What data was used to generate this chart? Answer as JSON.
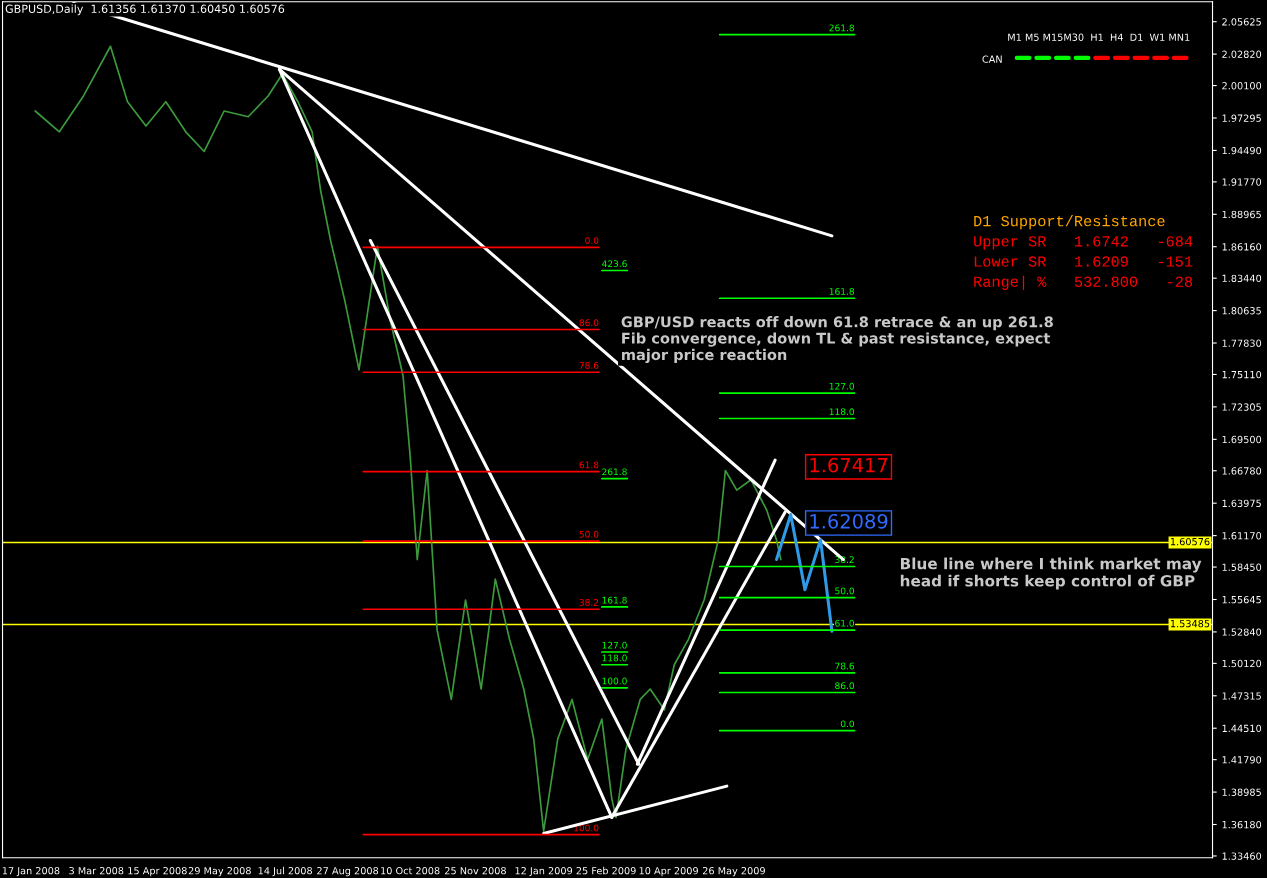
{
  "chart_data": {
    "type": "line",
    "title": "GBPUSD,Daily  1.61356 1.61370 1.60450 1.60576",
    "xlim": [
      "2007-12-28",
      "2010-04-28"
    ],
    "xticks": [
      {
        "value": "2008-01-17",
        "label": "17 Jan 2008"
      },
      {
        "value": "2008-03-03",
        "label": "3 Mar 2008"
      },
      {
        "value": "2008-04-15",
        "label": "15 Apr 2008"
      },
      {
        "value": "2008-05-29",
        "label": "29 May 2008"
      },
      {
        "value": "2008-07-14",
        "label": "14 Jul 2008"
      },
      {
        "value": "2008-08-27",
        "label": "27 Aug 2008"
      },
      {
        "value": "2008-10-10",
        "label": "10 Oct 2008"
      },
      {
        "value": "2008-11-25",
        "label": "25 Nov 2008"
      },
      {
        "value": "2009-01-12",
        "label": "12 Jan 2009"
      },
      {
        "value": "2009-02-25",
        "label": "25 Feb 2009"
      },
      {
        "value": "2009-04-10",
        "label": "10 Apr 2009"
      },
      {
        "value": "2009-05-26",
        "label": "26 May 2009"
      }
    ],
    "ylim": [
      1.333,
      2.0735
    ],
    "yticks": [
      {
        "value": 2.05625,
        "label": "2.05625"
      },
      {
        "value": 2.0282,
        "label": "2.02820"
      },
      {
        "value": 2.001,
        "label": "2.00100"
      },
      {
        "value": 1.97295,
        "label": "1.97295"
      },
      {
        "value": 1.9449,
        "label": "1.94490"
      },
      {
        "value": 1.9177,
        "label": "1.91770"
      },
      {
        "value": 1.88965,
        "label": "1.88965"
      },
      {
        "value": 1.8616,
        "label": "1.86160"
      },
      {
        "value": 1.8344,
        "label": "1.83440"
      },
      {
        "value": 1.80635,
        "label": "1.80635"
      },
      {
        "value": 1.7783,
        "label": "1.77830"
      },
      {
        "value": 1.7511,
        "label": "1.75110"
      },
      {
        "value": 1.72305,
        "label": "1.72305"
      },
      {
        "value": 1.695,
        "label": "1.69500"
      },
      {
        "value": 1.6678,
        "label": "1.66780"
      },
      {
        "value": 1.63975,
        "label": "1.63975"
      },
      {
        "value": 1.6117,
        "label": "1.61170"
      },
      {
        "value": 1.5845,
        "label": "1.58450"
      },
      {
        "value": 1.55645,
        "label": "1.55645"
      },
      {
        "value": 1.5284,
        "label": "1.52840"
      },
      {
        "value": 1.5012,
        "label": "1.50120"
      },
      {
        "value": 1.47315,
        "label": "1.47315"
      },
      {
        "value": 1.4451,
        "label": "1.44510"
      },
      {
        "value": 1.4179,
        "label": "1.41790"
      },
      {
        "value": 1.38985,
        "label": "1.38985"
      },
      {
        "value": 1.3618,
        "label": "1.36180"
      },
      {
        "value": 1.3346,
        "label": "1.33460"
      }
    ],
    "grid": false,
    "legend": false,
    "series": [
      {
        "color": "#3c9a3c",
        "x": [
          "2008-01-20",
          "2008-02-06",
          "2008-02-23",
          "2008-03-13",
          "2008-03-25",
          "2008-04-07",
          "2008-04-21",
          "2008-05-05",
          "2008-05-18",
          "2008-06-01",
          "2008-06-18",
          "2008-07-02",
          "2008-07-12",
          "2008-07-23",
          "2008-08-02",
          "2008-08-08",
          "2008-08-15",
          "2008-08-25",
          "2008-09-04",
          "2008-09-17",
          "2008-09-26",
          "2008-10-05",
          "2008-10-10",
          "2008-10-15",
          "2008-10-22",
          "2008-10-29",
          "2008-11-08",
          "2008-11-18",
          "2008-11-29",
          "2008-12-09",
          "2008-12-19",
          "2008-12-29",
          "2009-01-05",
          "2009-01-12",
          "2009-01-22",
          "2009-02-01",
          "2009-02-12",
          "2009-02-22",
          "2009-03-01",
          "2009-03-04",
          "2009-03-11",
          "2009-03-21",
          "2009-03-28",
          "2009-04-07",
          "2009-04-14",
          "2009-04-24",
          "2009-05-05",
          "2009-05-15",
          "2009-05-20",
          "2009-05-28",
          "2009-06-07",
          "2009-06-18",
          "2009-06-25",
          "2009-06-28"
        ],
        "values": [
          1.979,
          1.961,
          1.992,
          2.035,
          1.987,
          1.966,
          1.987,
          1.961,
          1.944,
          1.979,
          1.974,
          1.992,
          2.011,
          1.987,
          1.961,
          1.91,
          1.867,
          1.815,
          1.755,
          1.862,
          1.798,
          1.75,
          1.681,
          1.591,
          1.668,
          1.53,
          1.47,
          1.556,
          1.479,
          1.574,
          1.522,
          1.479,
          1.436,
          1.356,
          1.436,
          1.47,
          1.418,
          1.453,
          1.384,
          1.368,
          1.427,
          1.47,
          1.479,
          1.461,
          1.5,
          1.522,
          1.556,
          1.608,
          1.668,
          1.651,
          1.66,
          1.634,
          1.608,
          1.591
        ]
      },
      {
        "color": "#ffffff",
        "x": [
          "2008-02-16",
          "2009-08-03"
        ],
        "values": [
          2.072,
          1.871
        ]
      },
      {
        "color": "#ffffff",
        "x": [
          "2008-07-10",
          "2009-08-11"
        ],
        "values": [
          2.015,
          1.591
        ]
      },
      {
        "color": "#ffffff",
        "x": [
          "2008-07-10",
          "2009-03-01"
        ],
        "values": [
          2.015,
          1.368
        ]
      },
      {
        "color": "#ffffff",
        "x": [
          "2008-09-12",
          "2009-03-20"
        ],
        "values": [
          1.867,
          1.414
        ]
      },
      {
        "color": "#ffffff",
        "x": [
          "2009-01-12",
          "2009-05-21"
        ],
        "values": [
          1.354,
          1.395
        ]
      },
      {
        "color": "#ffffff",
        "x": [
          "2009-03-01",
          "2009-07-01"
        ],
        "values": [
          1.368,
          1.632
        ]
      },
      {
        "color": "#ffffff",
        "x": [
          "2009-03-19",
          "2009-06-24"
        ],
        "values": [
          1.414,
          1.677
        ]
      },
      {
        "color": "#2f9be8",
        "x": [
          "2009-06-25",
          "2009-07-05",
          "2009-07-15",
          "2009-07-26",
          "2009-08-03"
        ],
        "values": [
          1.591,
          1.63,
          1.565,
          1.608,
          1.529
        ]
      },
      {
        "name": "0.0",
        "color": "#ff0000",
        "x": [
          "2008-09-07",
          "2009-02-20"
        ],
        "values": [
          1.861,
          1.861
        ]
      },
      {
        "name": "86.0",
        "color": "#ff0000",
        "x": [
          "2008-09-07",
          "2009-02-20"
        ],
        "values": [
          1.79,
          1.79
        ]
      },
      {
        "name": "78.6",
        "color": "#ff0000",
        "x": [
          "2008-09-07",
          "2009-02-20"
        ],
        "values": [
          1.753,
          1.753
        ]
      },
      {
        "name": "61.8",
        "color": "#ff0000",
        "x": [
          "2008-09-07",
          "2009-02-20"
        ],
        "values": [
          1.667,
          1.667
        ]
      },
      {
        "name": "50.0",
        "color": "#ff0000",
        "x": [
          "2008-09-07",
          "2009-02-20"
        ],
        "values": [
          1.607,
          1.607
        ]
      },
      {
        "name": "38.2",
        "color": "#ff0000",
        "x": [
          "2008-09-07",
          "2009-02-20"
        ],
        "values": [
          1.548,
          1.548
        ]
      },
      {
        "name": "100.0",
        "color": "#ff0000",
        "x": [
          "2008-09-07",
          "2009-02-20"
        ],
        "values": [
          1.353,
          1.353
        ]
      },
      {
        "name": "261.8",
        "color": "#00ff00",
        "x": [
          "2009-05-16",
          "2009-08-19"
        ],
        "values": [
          2.045,
          2.045
        ]
      },
      {
        "name": "161.8",
        "color": "#00ff00",
        "x": [
          "2009-05-16",
          "2009-08-19"
        ],
        "values": [
          1.817,
          1.817
        ]
      },
      {
        "name": "127.0",
        "color": "#00ff00",
        "x": [
          "2009-05-16",
          "2009-08-19"
        ],
        "values": [
          1.735,
          1.735
        ]
      },
      {
        "name": "118.0",
        "color": "#00ff00",
        "x": [
          "2009-05-16",
          "2009-08-19"
        ],
        "values": [
          1.713,
          1.713
        ]
      },
      {
        "name": "38.2",
        "color": "#00ff00",
        "x": [
          "2009-05-16",
          "2009-08-19"
        ],
        "values": [
          1.585,
          1.585
        ]
      },
      {
        "name": "50.0",
        "color": "#00ff00",
        "x": [
          "2009-05-16",
          "2009-08-19"
        ],
        "values": [
          1.558,
          1.558
        ]
      },
      {
        "name": "61.0",
        "color": "#00ff00",
        "x": [
          "2009-05-16",
          "2009-08-19"
        ],
        "values": [
          1.53,
          1.53
        ]
      },
      {
        "name": "78.6",
        "color": "#00ff00",
        "x": [
          "2009-05-16",
          "2009-08-19"
        ],
        "values": [
          1.493,
          1.493
        ]
      },
      {
        "name": "86.0",
        "color": "#00ff00",
        "x": [
          "2009-05-16",
          "2009-08-19"
        ],
        "values": [
          1.476,
          1.476
        ]
      },
      {
        "name": "0.0",
        "color": "#00ff00",
        "x": [
          "2009-05-16",
          "2009-08-19"
        ],
        "values": [
          1.443,
          1.443
        ]
      },
      {
        "name": "423.6",
        "color": "#00ff00",
        "x": [
          "2009-02-22",
          "2009-03-12"
        ],
        "values": [
          1.841,
          1.841
        ]
      },
      {
        "name": "261.8",
        "color": "#00ff00",
        "x": [
          "2009-02-22",
          "2009-03-12"
        ],
        "values": [
          1.661,
          1.661
        ]
      },
      {
        "name": "161.8",
        "color": "#00ff00",
        "x": [
          "2009-02-22",
          "2009-03-12"
        ],
        "values": [
          1.55,
          1.55
        ]
      },
      {
        "name": "127.0",
        "color": "#00ff00",
        "x": [
          "2009-02-22",
          "2009-03-12"
        ],
        "values": [
          1.511,
          1.511
        ]
      },
      {
        "name": "118.0",
        "color": "#00ff00",
        "x": [
          "2009-02-22",
          "2009-03-12"
        ],
        "values": [
          1.5,
          1.5
        ]
      },
      {
        "name": "100.0",
        "color": "#00ff00",
        "x": [
          "2009-02-22",
          "2009-03-12"
        ],
        "values": [
          1.48,
          1.48
        ]
      }
    ],
    "ref_lines": [
      {
        "axis": "y",
        "value": 1.60576,
        "label": "1.60576",
        "color": "#ffff00"
      },
      {
        "axis": "y",
        "value": 1.53485,
        "label": "1.53485",
        "color": "#ffff00"
      }
    ],
    "annotations": [
      "1.67417",
      "1.62089",
      "GBP/USD reacts off down 61.8 retrace & an up 261.8 Fib convergence, down TL & past resistance, expect major price reaction",
      "Blue line where I think market may head if shorts keep control of GBP",
      "M1 M5 M15M30  H1  H4  D1  W1 MN1",
      "CAN",
      "D1 Support/Resistance",
      "Upper SR   1.6742   -684",
      "Lower SR   1.6209   -151",
      "Range| %   532.800   -28"
    ]
  }
}
